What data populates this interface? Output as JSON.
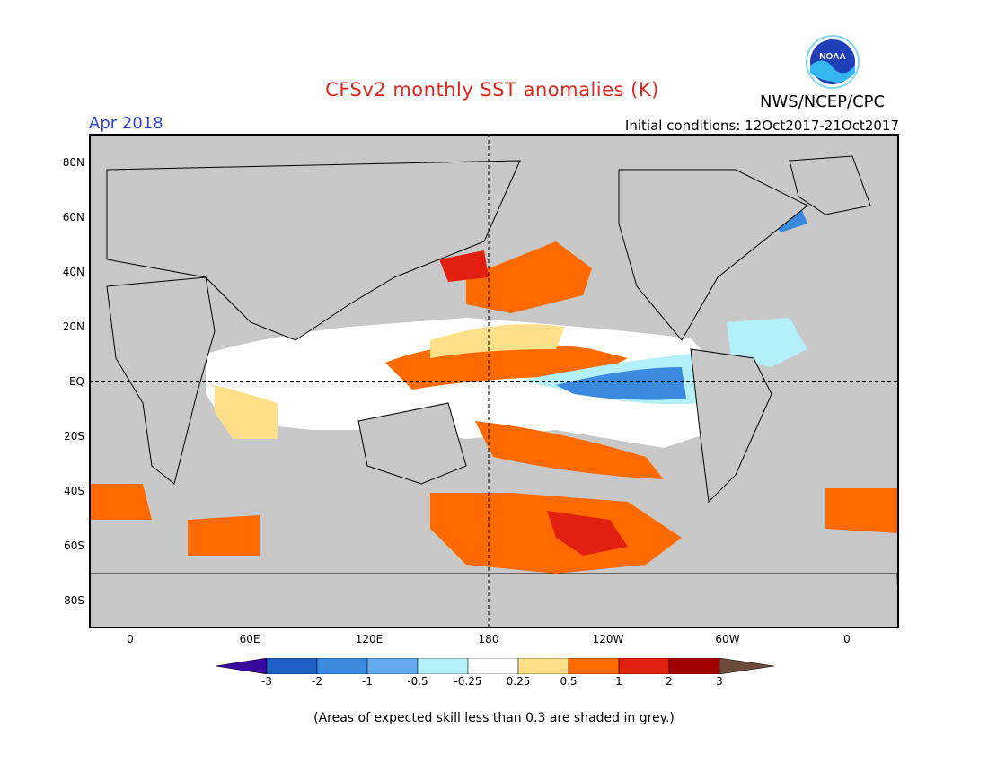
{
  "header": {
    "title": "CFSv2 monthly SST anomalies (K)",
    "month": "Apr 2018",
    "initial_conditions": "Initial conditions: 12Oct2017-21Oct2017",
    "agency": "NWS/NCEP/CPC",
    "logo_text": "NOAA"
  },
  "map": {
    "lat_labels": [
      "80N",
      "60N",
      "40N",
      "20N",
      "EQ",
      "20S",
      "40S",
      "60S",
      "80S"
    ],
    "lon_labels": [
      "0",
      "60E",
      "120E",
      "180",
      "120W",
      "60W",
      "0"
    ],
    "land_color": "#c8c8c8",
    "neutral_color": "#ffffff"
  },
  "colorbar": {
    "labels": [
      "-3",
      "-2",
      "-1",
      "-0.5",
      "-0.25",
      "0.25",
      "0.5",
      "1",
      "2",
      "3"
    ],
    "colors": [
      "#3a0aa0",
      "#1f5fc8",
      "#3c8ae0",
      "#63aaf0",
      "#b4f0fa",
      "#ffffff",
      "#ffe08a",
      "#ff6a00",
      "#e12010",
      "#a50000",
      "#6e4a3a"
    ]
  },
  "footnote": "(Areas of expected skill less than 0.3 are shaded in grey.)"
}
